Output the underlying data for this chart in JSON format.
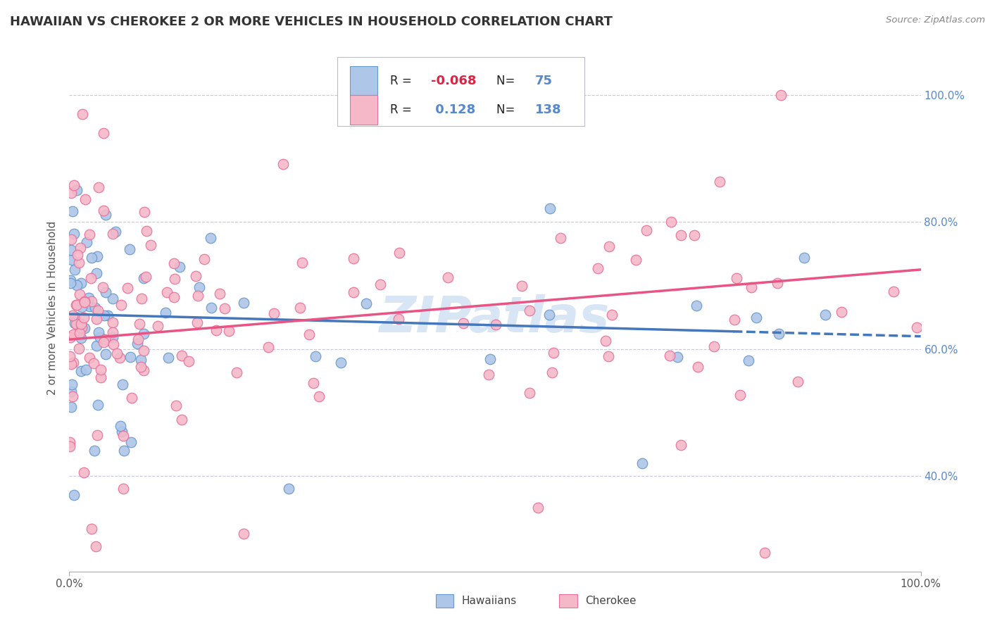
{
  "title": "HAWAIIAN VS CHEROKEE 2 OR MORE VEHICLES IN HOUSEHOLD CORRELATION CHART",
  "source": "Source: ZipAtlas.com",
  "ylabel": "2 or more Vehicles in Household",
  "legend_label1": "Hawaiians",
  "legend_label2": "Cherokee",
  "R1": -0.068,
  "N1": 75,
  "R2": 0.128,
  "N2": 138,
  "color_hawaiian_fill": "#aec6e8",
  "color_hawaiian_edge": "#6699cc",
  "color_cherokee_fill": "#f4b8c8",
  "color_cherokee_edge": "#e8709a",
  "color_line1": "#4477bb",
  "color_line2": "#e85585",
  "background_color": "#ffffff",
  "grid_color": "#c8c8d8",
  "title_color": "#333333",
  "right_tick_color": "#5588cc",
  "watermark_color": "#c8daf0",
  "ytick_positions": [
    100,
    80,
    60,
    40
  ],
  "ytick_labels": [
    "100.0%",
    "80.0%",
    "60.0%",
    "40.0%"
  ],
  "xlim": [
    0,
    100
  ],
  "ylim": [
    25,
    108
  ],
  "seed1": 17,
  "seed2": 99,
  "line1_y0": 65.5,
  "line1_y100": 62.0,
  "line2_y0": 61.5,
  "line2_y100": 72.5,
  "line1_solid_end": 78
}
